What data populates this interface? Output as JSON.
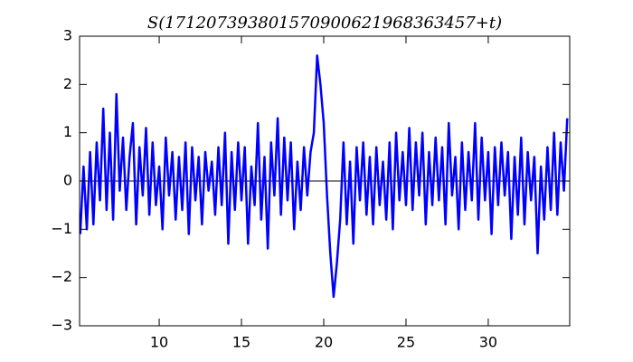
{
  "chart_data": {
    "type": "line",
    "title": "S(171207393801570900621968363457+t)",
    "x": [
      5.2,
      5.4,
      5.6,
      5.8,
      6.0,
      6.2,
      6.4,
      6.6,
      6.8,
      7.0,
      7.2,
      7.4,
      7.6,
      7.8,
      8.0,
      8.2,
      8.4,
      8.6,
      8.8,
      9.0,
      9.2,
      9.4,
      9.6,
      9.8,
      10.0,
      10.2,
      10.4,
      10.6,
      10.8,
      11.0,
      11.2,
      11.4,
      11.6,
      11.8,
      12.0,
      12.2,
      12.4,
      12.6,
      12.8,
      13.0,
      13.2,
      13.4,
      13.6,
      13.8,
      14.0,
      14.2,
      14.4,
      14.6,
      14.8,
      15.0,
      15.2,
      15.4,
      15.6,
      15.8,
      16.0,
      16.2,
      16.4,
      16.6,
      16.8,
      17.0,
      17.2,
      17.4,
      17.6,
      17.8,
      18.0,
      18.2,
      18.4,
      18.6,
      18.8,
      19.0,
      19.2,
      19.4,
      19.6,
      19.8,
      20.0,
      20.2,
      20.4,
      20.6,
      20.8,
      21.0,
      21.2,
      21.4,
      21.6,
      21.8,
      22.0,
      22.2,
      22.4,
      22.6,
      22.8,
      23.0,
      23.2,
      23.4,
      23.6,
      23.8,
      24.0,
      24.2,
      24.4,
      24.6,
      24.8,
      25.0,
      25.2,
      25.4,
      25.6,
      25.8,
      26.0,
      26.2,
      26.4,
      26.6,
      26.8,
      27.0,
      27.2,
      27.4,
      27.6,
      27.8,
      28.0,
      28.2,
      28.4,
      28.6,
      28.8,
      29.0,
      29.2,
      29.4,
      29.6,
      29.8,
      30.0,
      30.2,
      30.4,
      30.6,
      30.8,
      31.0,
      31.2,
      31.4,
      31.6,
      31.8,
      32.0,
      32.2,
      32.4,
      32.6,
      32.8,
      33.0,
      33.2,
      33.4,
      33.6,
      33.8,
      34.0,
      34.2,
      34.4,
      34.6,
      34.8
    ],
    "series": [
      {
        "color": "#0000ff",
        "values": [
          -1.1,
          0.3,
          -1.0,
          0.6,
          -0.9,
          0.8,
          -0.4,
          1.5,
          -0.6,
          1.0,
          -0.8,
          1.8,
          -0.2,
          0.9,
          -0.6,
          0.5,
          1.2,
          -0.9,
          0.7,
          -0.3,
          1.1,
          -0.7,
          0.8,
          -0.5,
          0.3,
          -1.0,
          0.9,
          -0.3,
          0.6,
          -0.8,
          0.5,
          -0.6,
          0.8,
          -1.1,
          0.7,
          -0.4,
          0.5,
          -0.9,
          0.6,
          -0.2,
          0.4,
          -0.7,
          0.7,
          -0.5,
          1.0,
          -1.3,
          0.6,
          -0.6,
          0.8,
          -0.4,
          0.7,
          -1.3,
          0.3,
          -0.5,
          1.2,
          -0.8,
          0.5,
          -1.4,
          0.8,
          -0.3,
          1.3,
          -0.7,
          0.9,
          -0.4,
          0.8,
          -1.0,
          0.4,
          -0.6,
          0.7,
          -0.3,
          0.6,
          1.0,
          2.6,
          2.0,
          1.2,
          -0.3,
          -1.5,
          -2.4,
          -1.7,
          -0.8,
          0.8,
          -0.9,
          0.4,
          -1.3,
          0.7,
          -0.4,
          0.8,
          -0.7,
          0.5,
          -0.9,
          0.7,
          -0.5,
          0.4,
          -0.8,
          0.8,
          -1.0,
          1.0,
          -0.4,
          0.6,
          -0.5,
          1.1,
          -0.6,
          0.8,
          -0.3,
          1.0,
          -0.9,
          0.6,
          -0.5,
          0.9,
          -0.4,
          0.7,
          -0.9,
          1.2,
          -0.3,
          0.5,
          -1.0,
          0.8,
          -0.6,
          0.6,
          -0.4,
          1.2,
          -0.8,
          0.9,
          -0.4,
          0.6,
          -1.1,
          0.7,
          -0.5,
          0.8,
          -0.3,
          0.6,
          -1.2,
          0.5,
          -0.7,
          0.9,
          -0.9,
          0.6,
          -0.4,
          0.5,
          -1.5,
          0.3,
          -0.8,
          0.7,
          -0.6,
          1.0,
          -0.7,
          0.8,
          -0.2,
          1.3
        ]
      }
    ],
    "hlines": [
      0
    ],
    "xlim": [
      5.16,
      34.95
    ],
    "ylim": [
      -3,
      3
    ],
    "xticks": [
      10,
      15,
      20,
      25,
      30
    ],
    "yticks": [
      {
        "value": -3,
        "label": "−3"
      },
      {
        "value": -2,
        "label": "−2"
      },
      {
        "value": -1,
        "label": "−1"
      },
      0,
      1,
      2,
      3
    ]
  }
}
